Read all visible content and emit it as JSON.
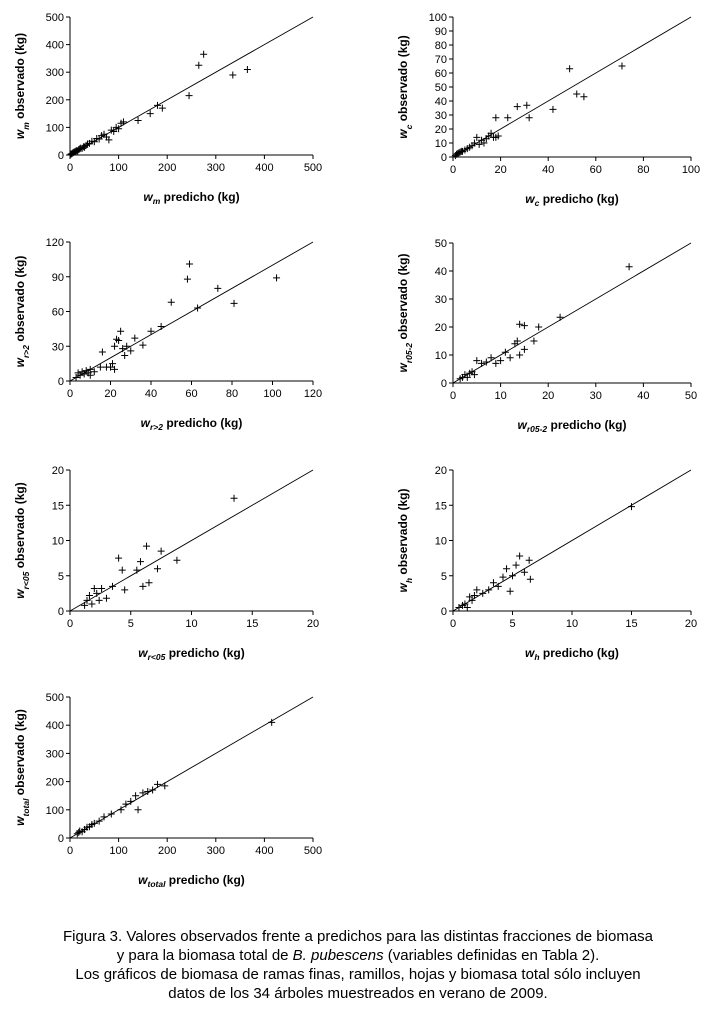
{
  "caption": {
    "line1": "Figura 3. Valores observados frente a predichos para las distintas fracciones de biomasa",
    "line2_a": "y para la biomasa total de ",
    "line2_species": "B. pubescens",
    "line2_b": " (variables definidas en Tabla 2).",
    "line3": "Los gráficos de biomasa de ramas finas, ramillos, hojas y biomasa total sólo incluyen",
    "line4": "datos de los 34 árboles muestreados en verano de 2009."
  },
  "chart_data": [
    {
      "type": "scatter",
      "id": "wm",
      "var": "w",
      "subscript": "m",
      "xlabel": "predicho (kg)",
      "ylabel": "observado (kg)",
      "xlim": [
        0,
        500
      ],
      "ylim": [
        0,
        500
      ],
      "xticks": [
        0,
        100,
        200,
        300,
        400,
        500
      ],
      "yticks": [
        0,
        100,
        200,
        300,
        400,
        500
      ],
      "line": "1:1",
      "points": [
        [
          2,
          3
        ],
        [
          4,
          5
        ],
        [
          6,
          8
        ],
        [
          8,
          10
        ],
        [
          10,
          12
        ],
        [
          12,
          14
        ],
        [
          14,
          16
        ],
        [
          16,
          15
        ],
        [
          18,
          20
        ],
        [
          20,
          22
        ],
        [
          22,
          25
        ],
        [
          25,
          24
        ],
        [
          28,
          30
        ],
        [
          30,
          28
        ],
        [
          33,
          35
        ],
        [
          36,
          40
        ],
        [
          40,
          42
        ],
        [
          45,
          50
        ],
        [
          50,
          48
        ],
        [
          55,
          60
        ],
        [
          60,
          58
        ],
        [
          65,
          70
        ],
        [
          70,
          75
        ],
        [
          75,
          65
        ],
        [
          80,
          55
        ],
        [
          85,
          90
        ],
        [
          90,
          85
        ],
        [
          95,
          100
        ],
        [
          100,
          95
        ],
        [
          105,
          115
        ],
        [
          110,
          120
        ],
        [
          140,
          125
        ],
        [
          165,
          150
        ],
        [
          180,
          180
        ],
        [
          190,
          170
        ],
        [
          245,
          215
        ],
        [
          265,
          325
        ],
        [
          275,
          365
        ],
        [
          335,
          290
        ],
        [
          365,
          310
        ]
      ]
    },
    {
      "type": "scatter",
      "id": "wc",
      "var": "w",
      "subscript": "c",
      "xlabel": "predicho (kg)",
      "ylabel": "observado (kg)",
      "xlim": [
        0,
        100
      ],
      "ylim": [
        0,
        100
      ],
      "xticks": [
        0,
        20,
        40,
        60,
        80,
        100
      ],
      "yticks": [
        0,
        10,
        20,
        30,
        40,
        50,
        60,
        70,
        80,
        90,
        100
      ],
      "line": "1:1",
      "points": [
        [
          1,
          1
        ],
        [
          1.5,
          2
        ],
        [
          2,
          2.5
        ],
        [
          2.5,
          3
        ],
        [
          3,
          3.5
        ],
        [
          3.5,
          4
        ],
        [
          4,
          4
        ],
        [
          5,
          5
        ],
        [
          6,
          6
        ],
        [
          7,
          7
        ],
        [
          8,
          8
        ],
        [
          9,
          10
        ],
        [
          10,
          14
        ],
        [
          11,
          9
        ],
        [
          12,
          12
        ],
        [
          13,
          10
        ],
        [
          14,
          13
        ],
        [
          15,
          15
        ],
        [
          16,
          17
        ],
        [
          17,
          14
        ],
        [
          18,
          14
        ],
        [
          18,
          28
        ],
        [
          19,
          15
        ],
        [
          23,
          28
        ],
        [
          27,
          36
        ],
        [
          31,
          37
        ],
        [
          32,
          28
        ],
        [
          42,
          34
        ],
        [
          49,
          63
        ],
        [
          52,
          45
        ],
        [
          55,
          43
        ],
        [
          71,
          65
        ]
      ]
    },
    {
      "type": "scatter",
      "id": "wr2",
      "var": "w",
      "subscript": "r>2",
      "xlabel": "predicho (kg)",
      "ylabel": "observado (kg)",
      "xlim": [
        0,
        120
      ],
      "ylim": [
        0,
        120
      ],
      "xticks": [
        0,
        20,
        40,
        60,
        80,
        100,
        120
      ],
      "yticks": [
        0,
        30,
        60,
        90,
        120
      ],
      "line": "1:1",
      "points": [
        [
          3,
          3
        ],
        [
          4,
          7
        ],
        [
          5,
          5
        ],
        [
          6,
          8
        ],
        [
          7,
          6
        ],
        [
          8,
          9
        ],
        [
          9,
          7
        ],
        [
          10,
          10
        ],
        [
          10,
          5
        ],
        [
          12,
          8
        ],
        [
          15,
          12
        ],
        [
          16,
          25
        ],
        [
          18,
          12
        ],
        [
          20,
          12
        ],
        [
          21,
          15
        ],
        [
          22,
          10
        ],
        [
          22,
          30
        ],
        [
          23,
          36
        ],
        [
          24,
          35
        ],
        [
          25,
          43
        ],
        [
          26,
          28
        ],
        [
          27,
          22
        ],
        [
          28,
          30
        ],
        [
          30,
          26
        ],
        [
          32,
          37
        ],
        [
          36,
          31
        ],
        [
          40,
          43
        ],
        [
          45,
          47
        ],
        [
          50,
          68
        ],
        [
          58,
          88
        ],
        [
          59,
          101
        ],
        [
          63,
          63
        ],
        [
          73,
          80
        ],
        [
          81,
          67
        ],
        [
          102,
          89
        ]
      ]
    },
    {
      "type": "scatter",
      "id": "wr052",
      "var": "w",
      "subscript": "r05-2",
      "xlabel": "predicho (kg)",
      "ylabel": "observado (kg)",
      "xlim": [
        0,
        50
      ],
      "ylim": [
        0,
        50
      ],
      "xticks": [
        0,
        10,
        20,
        30,
        40,
        50
      ],
      "yticks": [
        0,
        10,
        20,
        30,
        40,
        50
      ],
      "line": "1:1",
      "points": [
        [
          1.5,
          1.5
        ],
        [
          2,
          2
        ],
        [
          2.5,
          3
        ],
        [
          3,
          2
        ],
        [
          3.5,
          3.5
        ],
        [
          4,
          4
        ],
        [
          4.5,
          3
        ],
        [
          5,
          8
        ],
        [
          6,
          7
        ],
        [
          7,
          7.5
        ],
        [
          8,
          9
        ],
        [
          9,
          7
        ],
        [
          10,
          8
        ],
        [
          11,
          11
        ],
        [
          12,
          9
        ],
        [
          13,
          14
        ],
        [
          13.5,
          15
        ],
        [
          14,
          21
        ],
        [
          14,
          10
        ],
        [
          15,
          12
        ],
        [
          15,
          20.5
        ],
        [
          17,
          15
        ],
        [
          18,
          20
        ],
        [
          22.5,
          23.5
        ],
        [
          37,
          41.5
        ]
      ]
    },
    {
      "type": "scatter",
      "id": "wr05",
      "var": "w",
      "subscript": "r<05",
      "xlabel": "predicho (kg)",
      "ylabel": "observado (kg)",
      "xlim": [
        0,
        20
      ],
      "ylim": [
        0,
        20
      ],
      "xticks": [
        0,
        5,
        10,
        15,
        20
      ],
      "yticks": [
        0,
        5,
        10,
        15,
        20
      ],
      "line": "1:1",
      "points": [
        [
          1.2,
          0.8
        ],
        [
          1.4,
          1.5
        ],
        [
          1.6,
          2.2
        ],
        [
          1.8,
          1
        ],
        [
          2,
          3.2
        ],
        [
          2.2,
          2.5
        ],
        [
          2.4,
          1.5
        ],
        [
          2.6,
          3.2
        ],
        [
          3,
          1.8
        ],
        [
          3.5,
          3.5
        ],
        [
          4,
          7.5
        ],
        [
          4.3,
          5.8
        ],
        [
          4.5,
          3
        ],
        [
          5.5,
          5.8
        ],
        [
          5.8,
          7
        ],
        [
          6,
          3.5
        ],
        [
          6.3,
          9.2
        ],
        [
          6.5,
          4
        ],
        [
          7.2,
          6
        ],
        [
          7.5,
          8.5
        ],
        [
          8.8,
          7.2
        ],
        [
          13.5,
          16
        ]
      ]
    },
    {
      "type": "scatter",
      "id": "wh",
      "var": "w",
      "subscript": "h",
      "xlabel": "predicho (kg)",
      "ylabel": "observado (kg)",
      "xlim": [
        0,
        20
      ],
      "ylim": [
        0,
        20
      ],
      "xticks": [
        0,
        5,
        10,
        15,
        20
      ],
      "yticks": [
        0,
        5,
        10,
        15,
        20
      ],
      "line": "1:1",
      "points": [
        [
          0.5,
          0.5
        ],
        [
          0.8,
          0.8
        ],
        [
          1,
          1
        ],
        [
          1.2,
          0.5
        ],
        [
          1.4,
          2
        ],
        [
          1.6,
          1.5
        ],
        [
          1.8,
          2.2
        ],
        [
          2,
          3
        ],
        [
          2.5,
          2.5
        ],
        [
          3,
          3
        ],
        [
          3.4,
          4
        ],
        [
          3.8,
          3.5
        ],
        [
          4.2,
          4.8
        ],
        [
          4.5,
          6
        ],
        [
          4.8,
          2.8
        ],
        [
          5,
          5
        ],
        [
          5.3,
          6.5
        ],
        [
          5.6,
          7.8
        ],
        [
          6,
          5.5
        ],
        [
          6.4,
          7.2
        ],
        [
          6.5,
          4.5
        ],
        [
          15,
          14.8
        ]
      ]
    },
    {
      "type": "scatter",
      "id": "wtotal",
      "var": "w",
      "subscript": "total",
      "xlabel": "predicho (kg)",
      "ylabel": "observado (kg)",
      "xlim": [
        0,
        500
      ],
      "ylim": [
        0,
        500
      ],
      "xticks": [
        0,
        100,
        200,
        300,
        400,
        500
      ],
      "yticks": [
        0,
        100,
        200,
        300,
        400,
        500
      ],
      "line": "1:1",
      "points": [
        [
          15,
          15
        ],
        [
          18,
          20
        ],
        [
          20,
          25
        ],
        [
          25,
          22
        ],
        [
          30,
          30
        ],
        [
          35,
          38
        ],
        [
          40,
          40
        ],
        [
          45,
          48
        ],
        [
          50,
          52
        ],
        [
          60,
          60
        ],
        [
          70,
          75
        ],
        [
          85,
          85
        ],
        [
          105,
          100
        ],
        [
          115,
          120
        ],
        [
          125,
          130
        ],
        [
          135,
          150
        ],
        [
          140,
          100
        ],
        [
          150,
          160
        ],
        [
          160,
          165
        ],
        [
          170,
          170
        ],
        [
          180,
          190
        ],
        [
          195,
          185
        ],
        [
          415,
          410
        ]
      ]
    }
  ]
}
